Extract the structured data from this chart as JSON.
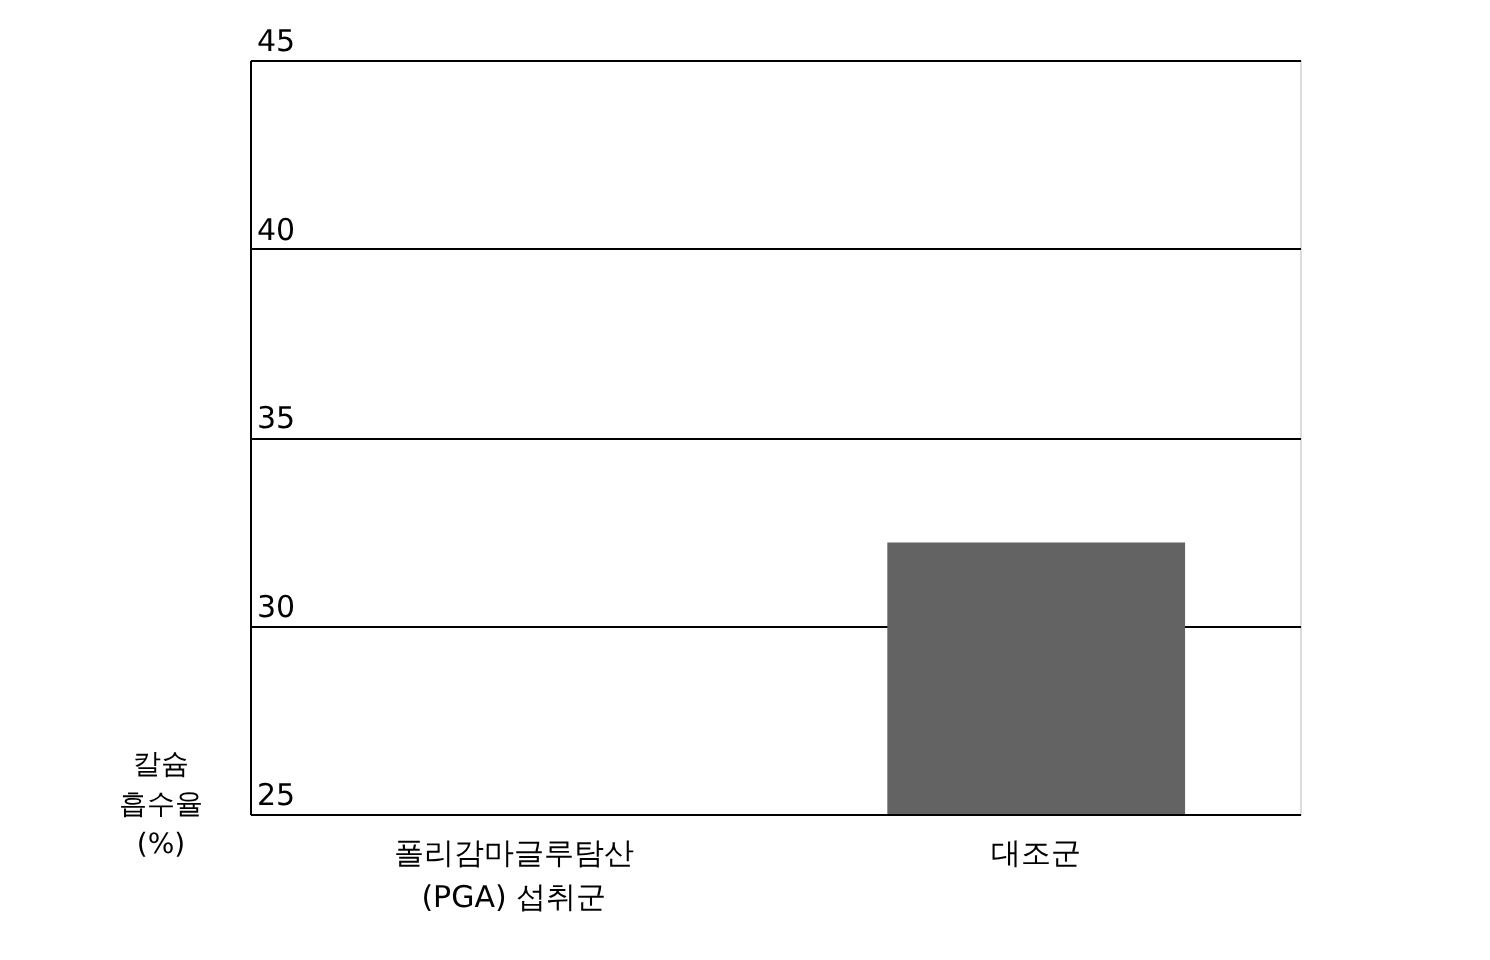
{
  "chart_data": {
    "type": "bar",
    "ylabel": "칼슘\n흡수율\n(%)",
    "categories": [
      "폴리감마글루탐산\n(PGA) 섭취군",
      "대조군"
    ],
    "series": [
      {
        "color": "#636363",
        "values": [
          null,
          32.2
        ]
      }
    ],
    "ylim": [
      25,
      45
    ],
    "yticks": [
      25,
      30,
      35,
      40,
      45
    ],
    "grid": "y"
  }
}
